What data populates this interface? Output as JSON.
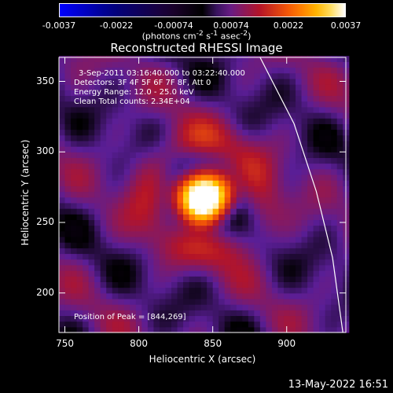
{
  "colorbar": {
    "ticks": [
      "-0.0037",
      "-0.0022",
      "-0.00074",
      "0.00074",
      "0.0022",
      "0.0037"
    ],
    "units_prefix": "(photons cm",
    "units_exp1": "-2",
    "units_mid": " s",
    "units_exp2": "-1",
    "units_mid2": " asec",
    "units_exp3": "-2",
    "units_suffix": ")"
  },
  "annotations": {
    "time": "3-Sep-2011 03:16:40.000 to 03:22:40.000",
    "detectors": "Detectors: 3F 4F 5F 6F 7F 8F, Att 0",
    "energy": "Energy Range: 12.0 - 25.0 keV",
    "clean": "Clean     Total counts: 2.34E+04",
    "peak": "Position of Peak = [844,269]"
  },
  "footer": "13-May-2022 16:51",
  "chart_data": {
    "type": "heatmap",
    "title": "Reconstructed RHESSI Image",
    "xlabel": "Heliocentric X (arcsec)",
    "ylabel": "Heliocentric Y (arcsec)",
    "xlim": [
      746,
      940
    ],
    "ylim": [
      172,
      367
    ],
    "xticks": [
      750,
      800,
      850,
      900
    ],
    "yticks": [
      200,
      250,
      300,
      350
    ],
    "color_range": [
      -0.0037,
      0.0037
    ],
    "peak": [
      844,
      269
    ],
    "limb_curve": [
      [
        882,
        367
      ],
      [
        905,
        320
      ],
      [
        920,
        272
      ],
      [
        931,
        225
      ],
      [
        938,
        172
      ]
    ]
  }
}
